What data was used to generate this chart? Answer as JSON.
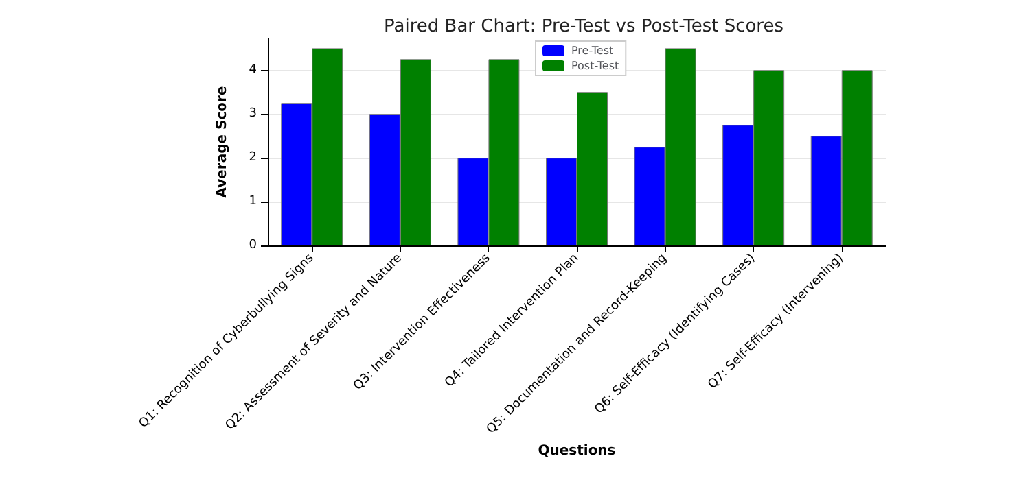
{
  "chart_data": {
    "type": "bar",
    "title": "Paired Bar Chart: Pre-Test vs Post-Test Scores",
    "xlabel": "Questions",
    "ylabel": "Average Score",
    "categories": [
      "Q1: Recognition of Cyberbullying Signs",
      "Q2: Assessment of Severity and Nature",
      "Q3: Intervention Effectiveness",
      "Q4: Tailored Intervention Plan",
      "Q5: Documentation and Record-Keeping",
      "Q6: Self-Efficacy (Identifying Cases)",
      "Q7: Self-Efficacy (Intervening)"
    ],
    "series": [
      {
        "name": "Pre-Test",
        "color": "#0000ff",
        "values": [
          3.25,
          3.0,
          2.0,
          2.0,
          2.25,
          2.75,
          2.5
        ]
      },
      {
        "name": "Post-Test",
        "color": "#008000",
        "values": [
          4.5,
          4.25,
          4.25,
          3.5,
          4.5,
          4.0,
          4.0
        ]
      }
    ],
    "ylim": [
      0,
      4.725
    ],
    "yticks": [
      0,
      1,
      2,
      3,
      4
    ],
    "grid": "y",
    "legend": "top"
  }
}
